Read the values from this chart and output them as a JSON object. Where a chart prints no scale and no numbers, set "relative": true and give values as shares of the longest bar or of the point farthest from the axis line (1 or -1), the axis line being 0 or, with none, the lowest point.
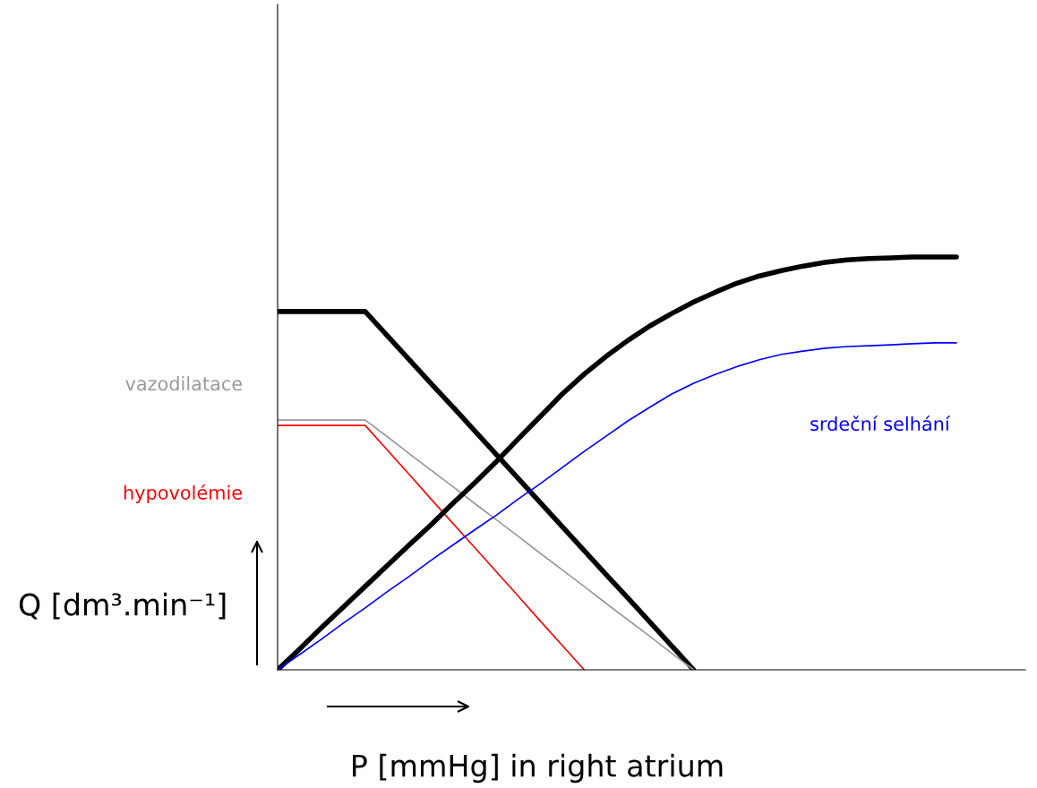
{
  "chart_data": {
    "type": "line",
    "relative": true,
    "xlabel": "P [mmHg] in right atrium",
    "ylabel": "Q [dm³.min⁻¹]",
    "legend": false,
    "marker": "none",
    "line_style": "solid",
    "categories": [
      null,
      null,
      null,
      null,
      null,
      null,
      null,
      null,
      null,
      null,
      null,
      null,
      null,
      null,
      null,
      null,
      null,
      null,
      null,
      null,
      null,
      null,
      null,
      null,
      null,
      null,
      null,
      null,
      null,
      null,
      null,
      null
    ],
    "series": [
      {
        "color": "#000000",
        "values": [
          0.868,
          0.868,
          0.868,
          0.868,
          0.868,
          0.81,
          0.752,
          0.694,
          0.637,
          0.579,
          0.521,
          0.463,
          0.405,
          0.347,
          0.289,
          0.231,
          0.174,
          0.116,
          0.058,
          0,
          null,
          null,
          null,
          null,
          null,
          null,
          null,
          null,
          null,
          null,
          null,
          null
        ]
      },
      {
        "name": "vazodilatace",
        "color": "#999999",
        "values": [
          0.605,
          0.605,
          0.605,
          0.605,
          0.605,
          0.565,
          0.524,
          0.484,
          0.444,
          0.403,
          0.363,
          0.323,
          0.282,
          0.242,
          0.202,
          0.161,
          0.121,
          0.081,
          0.04,
          0,
          null,
          null,
          null,
          null,
          null,
          null,
          null,
          null,
          null,
          null,
          null,
          null
        ]
      },
      {
        "name": "hypovolémie",
        "color": "#ff0000",
        "values": [
          0.592,
          0.592,
          0.592,
          0.592,
          0.592,
          0.533,
          0.474,
          0.414,
          0.355,
          0.296,
          0.237,
          0.178,
          0.118,
          0.059,
          0,
          null,
          null,
          null,
          null,
          null,
          null,
          null,
          null,
          null,
          null,
          null,
          null,
          null,
          null,
          null,
          null,
          null
        ]
      },
      {
        "color": "#000000",
        "values": [
          0,
          0.05,
          0.102,
          0.152,
          0.202,
          0.252,
          0.302,
          0.351,
          0.403,
          0.453,
          0.505,
          0.56,
          0.614,
          0.668,
          0.716,
          0.759,
          0.798,
          0.833,
          0.863,
          0.891,
          0.915,
          0.937,
          0.954,
          0.967,
          0.978,
          0.987,
          0.993,
          0.996,
          0.998,
          1,
          1,
          1
        ]
      },
      {
        "name": "srdeční selhání",
        "color": "#0000ff",
        "values": [
          0,
          0.037,
          0.074,
          0.113,
          0.15,
          0.189,
          0.226,
          0.265,
          0.302,
          0.339,
          0.375,
          0.414,
          0.451,
          0.49,
          0.529,
          0.566,
          0.603,
          0.636,
          0.668,
          0.694,
          0.716,
          0.735,
          0.751,
          0.764,
          0.772,
          0.779,
          0.783,
          0.785,
          0.787,
          0.79,
          0.792,
          0.792
        ]
      }
    ]
  }
}
